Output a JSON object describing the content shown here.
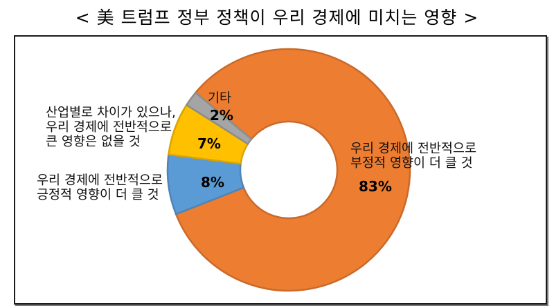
{
  "title": "< 美 트럼프 정부 정책이 우리 경제에 미치는 영향 >",
  "chart_data": {
    "type": "pie",
    "subtype": "doughnut",
    "title": "< 美 트럼프 정부 정책이 우리 경제에 미치는 영향 >",
    "categories": [
      "우리 경제에 전반적으로 부정적 영향이 더 클 것",
      "우리 경제에 전반적으로 긍정적 영향이 더 클 것",
      "산업별로 차이가 있으나, 우리 경제에 전반적으로 큰 영향은 없을 것",
      "기타"
    ],
    "values": [
      83,
      8,
      7,
      2
    ],
    "unit": "%",
    "colors": [
      "#ED7D31",
      "#5B9BD5",
      "#FFC000",
      "#A5A5A5"
    ],
    "start_angle_deg": 309.7,
    "direction": "clockwise",
    "legend": "none (data labels with category names)"
  },
  "labels": {
    "negative": {
      "line1": "우리 경제에 전반적으로",
      "line2": "부정적 영향이 더 클 것",
      "pct": "83%"
    },
    "positive": {
      "line1": "우리 경제에 전반적으로",
      "line2": "긍정적 영향이 더 클 것",
      "pct": "8%"
    },
    "neutral": {
      "line1": "산업별로 차이가 있으나,",
      "line2": "우리 경제에 전반적으로",
      "line3": "큰 영향은 없을 것",
      "pct": "7%"
    },
    "other": {
      "line1": "기타",
      "pct": "2%"
    }
  }
}
